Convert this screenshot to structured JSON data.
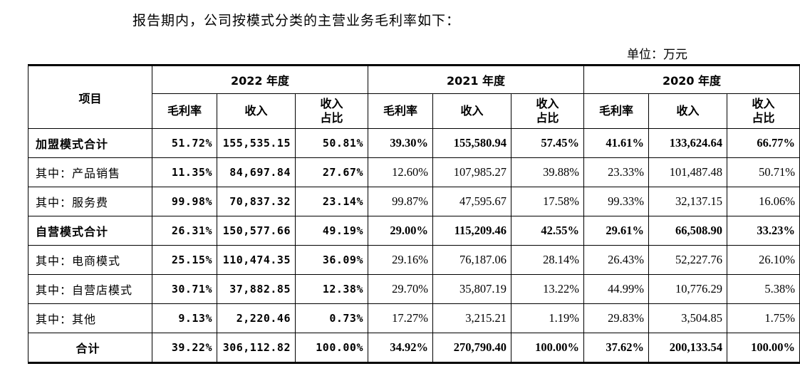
{
  "intro": "报告期内，公司按模式分类的主营业务毛利率如下：",
  "unit": "单位：万元",
  "table": {
    "item_header": "项目",
    "years": [
      "2022 年度",
      "2021 年度",
      "2020 年度"
    ],
    "subheaders": [
      "毛利率",
      "收入",
      "收入\n占比"
    ],
    "rows": [
      {
        "label": "加盟模式合计",
        "bold": true,
        "y2022": [
          "51.72%",
          "155,535.15",
          "50.81%"
        ],
        "y2021": [
          "39.30%",
          "155,580.94",
          "57.45%"
        ],
        "y2020": [
          "41.61%",
          "133,624.64",
          "66.77%"
        ]
      },
      {
        "label": "其中：产品销售",
        "bold": false,
        "y2022": [
          "11.35%",
          "84,697.84",
          "27.67%"
        ],
        "y2021": [
          "12.60%",
          "107,985.27",
          "39.88%"
        ],
        "y2020": [
          "23.33%",
          "101,487.48",
          "50.71%"
        ]
      },
      {
        "label": "其中：服务费",
        "bold": false,
        "y2022": [
          "99.98%",
          "70,837.32",
          "23.14%"
        ],
        "y2021": [
          "99.87%",
          "47,595.67",
          "17.58%"
        ],
        "y2020": [
          "99.33%",
          "32,137.15",
          "16.06%"
        ]
      },
      {
        "label": "自营模式合计",
        "bold": true,
        "y2022": [
          "26.31%",
          "150,577.66",
          "49.19%"
        ],
        "y2021": [
          "29.00%",
          "115,209.46",
          "42.55%"
        ],
        "y2020": [
          "29.61%",
          "66,508.90",
          "33.23%"
        ]
      },
      {
        "label": "其中：电商模式",
        "bold": false,
        "y2022": [
          "25.15%",
          "110,474.35",
          "36.09%"
        ],
        "y2021": [
          "29.16%",
          "76,187.06",
          "28.14%"
        ],
        "y2020": [
          "26.43%",
          "52,227.76",
          "26.10%"
        ]
      },
      {
        "label": "其中：自营店模式",
        "bold": false,
        "y2022": [
          "30.71%",
          "37,882.85",
          "12.38%"
        ],
        "y2021": [
          "29.70%",
          "35,807.19",
          "13.22%"
        ],
        "y2020": [
          "44.99%",
          "10,776.29",
          "5.38%"
        ]
      },
      {
        "label": "其中：其他",
        "bold": false,
        "y2022": [
          "9.13%",
          "2,220.46",
          "0.73%"
        ],
        "y2021": [
          "17.27%",
          "3,215.21",
          "1.19%"
        ],
        "y2020": [
          "29.83%",
          "3,504.85",
          "1.75%"
        ]
      },
      {
        "label": "合计",
        "bold": true,
        "center": true,
        "y2022": [
          "39.22%",
          "306,112.82",
          "100.00%"
        ],
        "y2021": [
          "34.92%",
          "270,790.40",
          "100.00%"
        ],
        "y2020": [
          "37.62%",
          "200,133.54",
          "100.00%"
        ]
      }
    ]
  }
}
